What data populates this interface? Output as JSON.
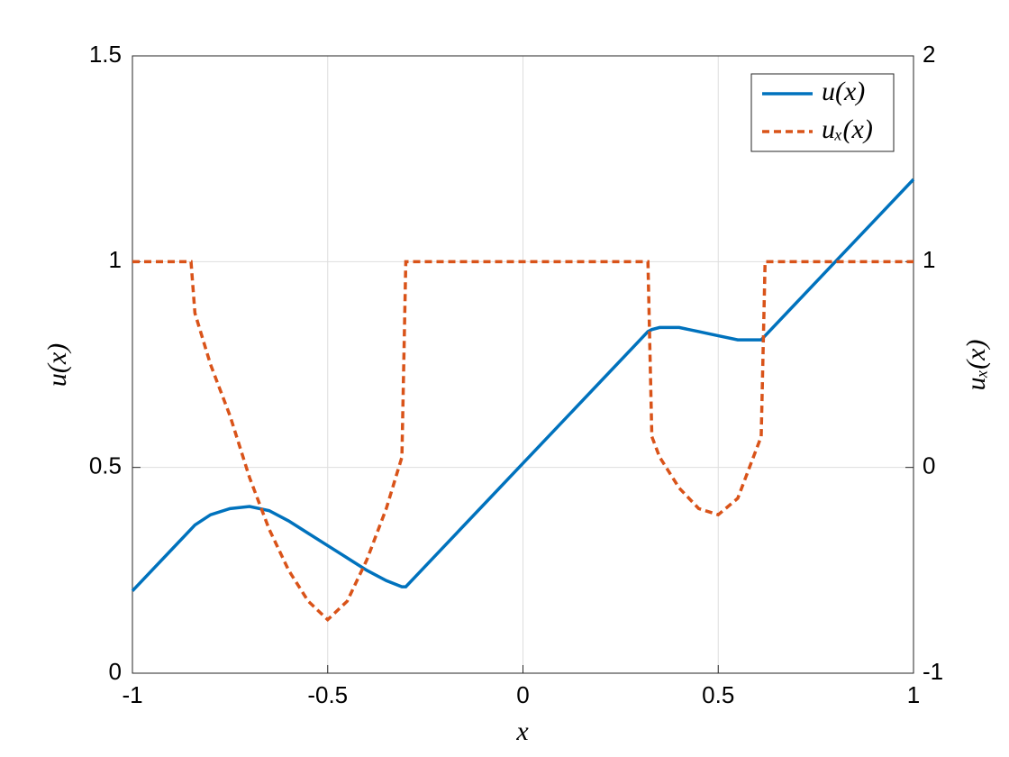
{
  "chart_data": {
    "type": "line",
    "xlabel": "x",
    "ylabel": "u(x)",
    "y2label": "uₓ(x)",
    "x": [
      -1,
      -0.9,
      -0.85,
      -0.84,
      -0.8,
      -0.75,
      -0.7,
      -0.65,
      -0.6,
      -0.55,
      -0.5,
      -0.45,
      -0.4,
      -0.35,
      -0.31,
      -0.3,
      -0.2,
      -0.1,
      0,
      0.1,
      0.2,
      0.3,
      0.32,
      0.33,
      0.35,
      0.4,
      0.45,
      0.5,
      0.55,
      0.6,
      0.61,
      0.62,
      0.7,
      0.8,
      0.9,
      1
    ],
    "series": [
      {
        "name": "u(x)",
        "color": "#0072bd",
        "dash": false,
        "values": [
          0.2,
          0.3,
          0.35,
          0.36,
          0.385,
          0.4,
          0.405,
          0.395,
          0.37,
          0.34,
          0.31,
          0.28,
          0.25,
          0.225,
          0.21,
          0.21,
          0.31,
          0.41,
          0.51,
          0.61,
          0.71,
          0.81,
          0.83,
          0.835,
          0.84,
          0.84,
          0.83,
          0.82,
          0.81,
          0.81,
          0.81,
          0.82,
          0.9,
          1.0,
          1.1,
          1.2
        ]
      },
      {
        "name": "uₓ(x)",
        "color": "#d95319",
        "dash": true,
        "axis": "y2",
        "values": [
          1,
          1,
          1,
          0.75,
          0.5,
          0.25,
          -0.05,
          -0.3,
          -0.5,
          -0.65,
          -0.74,
          -0.65,
          -0.45,
          -0.2,
          0.05,
          1,
          1,
          1,
          1,
          1,
          1,
          1,
          1,
          0.15,
          0.05,
          -0.1,
          -0.2,
          -0.23,
          -0.15,
          0.1,
          0.15,
          1,
          1,
          1,
          1,
          1
        ]
      }
    ],
    "xlim": [
      -1,
      1
    ],
    "xticks": [
      -1,
      -0.5,
      0,
      0.5,
      1
    ],
    "ylim": [
      0,
      1.5
    ],
    "yticks": [
      0,
      0.5,
      1,
      1.5
    ],
    "y2lim": [
      -1,
      2
    ],
    "y2ticks": [
      -1,
      0,
      1,
      2
    ],
    "grid": true,
    "legend": "upper-right"
  }
}
